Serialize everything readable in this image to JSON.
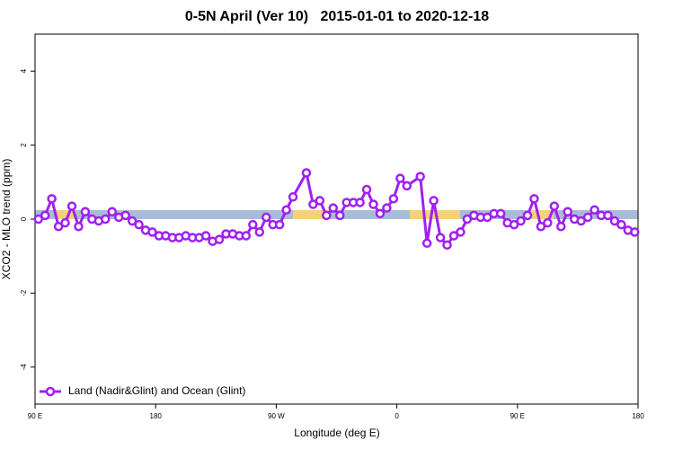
{
  "chart_data": {
    "type": "line",
    "title": "0-5N April (Ver 10)   2015-01-01 to 2020-12-18",
    "x_label": "Longitude (deg E)",
    "y_label": "XCO2 - MLO trend (ppm)",
    "xlim": [
      90,
      540
    ],
    "xticks": [
      {
        "value": 90,
        "label": "90 E"
      },
      180,
      {
        "value": 270,
        "label": "90 W"
      },
      {
        "value": 360,
        "label": "0"
      },
      {
        "value": 450,
        "label": "90 E"
      },
      {
        "value": 540,
        "label": "180"
      }
    ],
    "ylim": [
      -5,
      5
    ],
    "yticks": [
      -4,
      -2,
      0,
      2,
      4
    ],
    "legend": "bottom-left",
    "x": [
      92.5,
      97.5,
      102.5,
      107.5,
      112.5,
      117.5,
      122.5,
      127.5,
      132.5,
      137.5,
      142.5,
      147.5,
      152.5,
      157.5,
      162.5,
      167.5,
      172.5,
      177.5,
      182.5,
      187.5,
      192.5,
      197.5,
      202.5,
      207.5,
      212.5,
      217.5,
      222.5,
      227.5,
      232.5,
      237.5,
      242.5,
      247.5,
      252.5,
      257.5,
      262.5,
      267.5,
      272.5,
      277.5,
      282.5,
      292.5,
      297.5,
      302.5,
      307.5,
      312.5,
      317.5,
      322.5,
      327.5,
      332.5,
      337.5,
      342.5,
      347.5,
      352.5,
      357.5,
      362.5,
      367.5,
      377.5,
      382.5,
      387.5,
      392.5,
      397.5,
      402.5,
      407.5,
      412.5,
      417.5,
      422.5,
      427.5,
      432.5,
      437.5,
      442.5,
      447.5,
      452.5,
      457.5,
      462.5,
      467.5,
      472.5,
      477.5,
      482.5,
      487.5,
      492.5,
      497.5,
      502.5,
      507.5,
      512.5,
      517.5,
      522.5,
      527.5,
      532.5,
      537.5
    ],
    "series": [
      {
        "name": "Land (Nadir&Glint) and Ocean (Glint)",
        "color": "#a020f0",
        "values": [
          0,
          0.1,
          0.55,
          -0.2,
          -0.1,
          0.35,
          -0.2,
          0.2,
          0,
          -0.05,
          0,
          0.2,
          0.05,
          0.1,
          -0.05,
          -0.15,
          -0.3,
          -0.35,
          -0.45,
          -0.45,
          -0.5,
          -0.5,
          -0.45,
          -0.5,
          -0.5,
          -0.45,
          -0.6,
          -0.55,
          -0.4,
          -0.4,
          -0.45,
          -0.45,
          -0.15,
          -0.35,
          0.05,
          -0.15,
          -0.15,
          0.25,
          0.6,
          1.25,
          0.4,
          0.5,
          0.1,
          0.3,
          0.1,
          0.45,
          0.45,
          0.45,
          0.8,
          0.4,
          0.15,
          0.3,
          0.55,
          1.1,
          0.9,
          1.15,
          -0.65,
          0.5,
          -0.5,
          -0.7,
          -0.45,
          -0.35,
          0,
          0.1,
          0.05,
          0.05,
          0.15,
          0.15,
          -0.1,
          -0.15,
          -0.05,
          0.1,
          0.55,
          -0.2,
          -0.1,
          0.35,
          -0.2,
          0.2,
          0,
          -0.05,
          0.05,
          0.25,
          0.1,
          0.1,
          -0.05,
          -0.15,
          -0.3,
          -0.35
        ]
      }
    ]
  }
}
